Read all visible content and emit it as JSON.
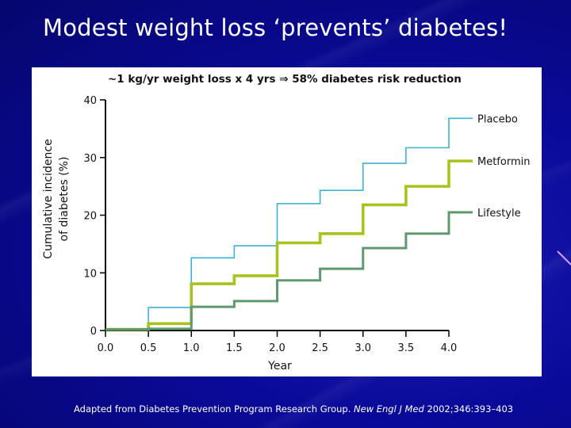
{
  "slide": {
    "title": "Modest weight loss ‘prevents’ diabetes!",
    "citation_prefix": "Adapted from Diabetes Prevention Program Research Group. ",
    "citation_journal": "New Engl J Med",
    "citation_suffix": " 2002;346:393–403"
  },
  "chart_data": {
    "type": "line",
    "subtype": "step",
    "title": "~1 kg/yr weight loss x 4 yrs ⇒ 58% diabetes risk reduction",
    "xlabel": "Year",
    "ylabel_line1": "Cumulative incidence",
    "ylabel_line2": "of diabetes (%)",
    "xlim": [
      0,
      4.0
    ],
    "ylim": [
      0,
      40
    ],
    "x_ticks": [
      0.0,
      0.5,
      1.0,
      1.5,
      2.0,
      2.5,
      3.0,
      3.5,
      4.0
    ],
    "x_tick_labels": [
      "0.0",
      "0.5",
      "1.0",
      "1.5",
      "2.0",
      "2.5",
      "3.0",
      "3.5",
      "4.0"
    ],
    "y_ticks": [
      0,
      10,
      20,
      30,
      40
    ],
    "y_tick_labels": [
      "0",
      "10",
      "20",
      "30",
      "40"
    ],
    "grid": false,
    "legend_placement": "right (labels at line ends)",
    "x": [
      0.0,
      0.5,
      1.0,
      1.5,
      2.0,
      2.5,
      3.0,
      3.5,
      4.0
    ],
    "series": [
      {
        "name": "Placebo",
        "color": "#3bb3d6",
        "values": [
          0.2,
          4.0,
          12.6,
          14.7,
          22.0,
          24.3,
          29.0,
          31.7,
          36.8
        ]
      },
      {
        "name": "Metformin",
        "color": "#a8c21e",
        "values": [
          0.2,
          1.2,
          8.1,
          9.5,
          15.2,
          16.8,
          21.8,
          25.0,
          29.4
        ]
      },
      {
        "name": "Lifestyle",
        "color": "#5e9a6e",
        "values": [
          0.2,
          0.3,
          4.1,
          5.1,
          8.7,
          10.7,
          14.3,
          16.8,
          20.5
        ]
      }
    ]
  }
}
